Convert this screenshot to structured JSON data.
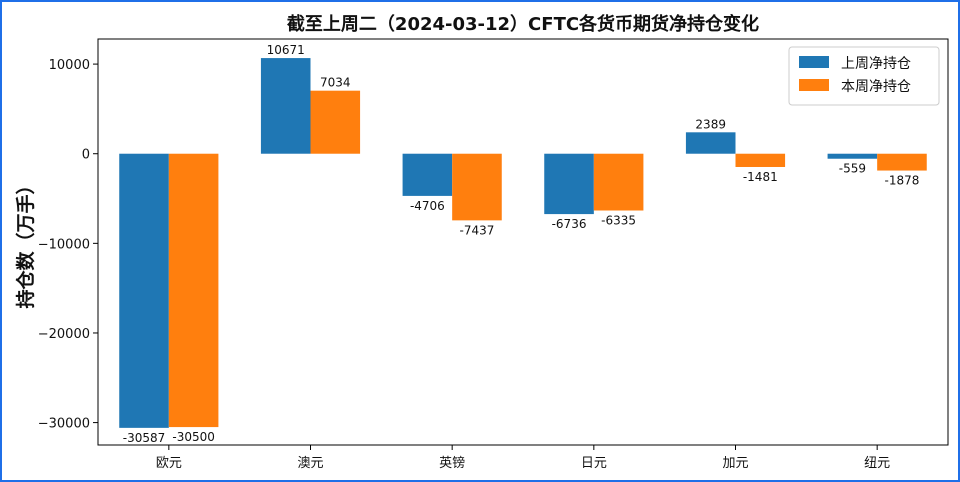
{
  "chart_data": {
    "type": "bar",
    "title": "截至上周二（2024-03-12）CFTC各货币期货净持仓变化",
    "xlabel": "",
    "ylabel": "持仓数（万手）",
    "categories": [
      "欧元",
      "澳元",
      "英镑",
      "日元",
      "加元",
      "纽元"
    ],
    "series": [
      {
        "name": "上周净持仓",
        "color": "#1f77b4",
        "values": [
          -30587,
          10671,
          -4706,
          -6736,
          2389,
          -559
        ]
      },
      {
        "name": "本周净持仓",
        "color": "#ff7f0e",
        "values": [
          -30500,
          7034,
          -7437,
          -6335,
          -1481,
          -1878
        ]
      }
    ],
    "ylim": [
      -32500,
      12800
    ],
    "yticks": [
      10000,
      0,
      -10000,
      -20000,
      -30000
    ],
    "ytick_labels": [
      "10000",
      "0",
      "−10000",
      "−20000",
      "−30000"
    ],
    "value_labels": [
      [
        "-30587",
        "10671",
        "-4706",
        "-6736",
        "2389",
        "-559"
      ],
      [
        "-30500",
        "7034",
        "-7437",
        "-6335",
        "-1481",
        "-1878"
      ]
    ],
    "grid": false,
    "legend_position": "top-right"
  }
}
